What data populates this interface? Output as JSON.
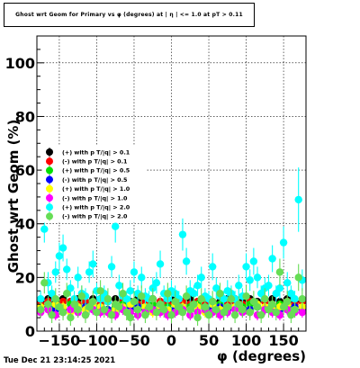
{
  "chart_data": {
    "type": "scatter",
    "title": "Ghost wrt Geom for Primary vs φ (degrees) at | η | <= 1.0 at pT > 0.11",
    "xlabel": "φ (degrees)",
    "ylabel": "Ghost wrt Geom (%)",
    "xlim": [
      -180,
      180
    ],
    "ylim": [
      0,
      110
    ],
    "x_ticks": [
      -150,
      -100,
      -50,
      0,
      50,
      100,
      150
    ],
    "y_ticks": [
      0,
      20,
      40,
      60,
      80,
      100
    ],
    "grid": true,
    "legend_position": "middle-left",
    "series": [
      {
        "name": "(+) with p T/|q| > 0.1",
        "color": "#000000",
        "x": [
          -175,
          -165,
          -155,
          -145,
          -135,
          -125,
          -115,
          -105,
          -95,
          -85,
          -75,
          -65,
          -55,
          -45,
          -35,
          -25,
          -15,
          -5,
          5,
          15,
          25,
          35,
          45,
          55,
          65,
          75,
          85,
          95,
          105,
          115,
          125,
          135,
          145,
          155,
          165,
          175
        ],
        "y": [
          11,
          12,
          11,
          12,
          11,
          12,
          11,
          12,
          12,
          11,
          12,
          11,
          11,
          12,
          11,
          12,
          11,
          11,
          12,
          11,
          12,
          11,
          12,
          11,
          11,
          12,
          12,
          11,
          12,
          11,
          11,
          12,
          11,
          12,
          11,
          11
        ],
        "errors": [
          1,
          1,
          1,
          1,
          1,
          1,
          1,
          1,
          1,
          1,
          1,
          1,
          1,
          1,
          1,
          1,
          1,
          1,
          1,
          1,
          1,
          1,
          1,
          1,
          1,
          1,
          1,
          1,
          1,
          1,
          1,
          1,
          1,
          1,
          1,
          1
        ]
      },
      {
        "name": "(-) with p T/|q| > 0.1",
        "color": "#ff0000",
        "x": [
          -175,
          -165,
          -155,
          -145,
          -135,
          -125,
          -115,
          -105,
          -95,
          -85,
          -75,
          -65,
          -55,
          -45,
          -35,
          -25,
          -15,
          -5,
          5,
          15,
          25,
          35,
          45,
          55,
          65,
          75,
          85,
          95,
          105,
          115,
          125,
          135,
          145,
          155,
          165,
          175
        ],
        "y": [
          10,
          11,
          10,
          11,
          11,
          10,
          11,
          10,
          10,
          11,
          10,
          11,
          10,
          10,
          11,
          10,
          11,
          10,
          10,
          11,
          10,
          11,
          10,
          11,
          10,
          10,
          11,
          10,
          11,
          10,
          11,
          10,
          10,
          11,
          10,
          11
        ],
        "errors": [
          1,
          1,
          1,
          1,
          1,
          1,
          1,
          1,
          1,
          1,
          1,
          1,
          1,
          1,
          1,
          1,
          1,
          1,
          1,
          1,
          1,
          1,
          1,
          1,
          1,
          1,
          1,
          1,
          1,
          1,
          1,
          1,
          1,
          1,
          1,
          1
        ]
      },
      {
        "name": "(+) with p T/|q| > 0.5",
        "color": "#00e000",
        "x": [
          -175,
          -165,
          -155,
          -145,
          -135,
          -125,
          -115,
          -105,
          -95,
          -85,
          -75,
          -65,
          -55,
          -45,
          -35,
          -25,
          -15,
          -5,
          5,
          15,
          25,
          35,
          45,
          55,
          65,
          75,
          85,
          95,
          105,
          115,
          125,
          135,
          145,
          155,
          165,
          175
        ],
        "y": [
          9,
          10,
          9,
          8,
          10,
          9,
          9,
          10,
          9,
          8,
          9,
          10,
          9,
          9,
          8,
          10,
          9,
          9,
          10,
          8,
          9,
          10,
          9,
          9,
          10,
          8,
          9,
          9,
          10,
          9,
          8,
          9,
          10,
          9,
          9,
          8
        ],
        "errors": [
          1.5,
          1.5,
          1.5,
          1.5,
          1.5,
          1.5,
          1.5,
          1.5,
          1.5,
          1.5,
          1.5,
          1.5,
          1.5,
          1.5,
          1.5,
          1.5,
          1.5,
          1.5,
          1.5,
          1.5,
          1.5,
          1.5,
          1.5,
          1.5,
          1.5,
          1.5,
          1.5,
          1.5,
          1.5,
          1.5,
          1.5,
          1.5,
          1.5,
          1.5,
          1.5,
          1.5
        ]
      },
      {
        "name": "(-) with p T/|q| > 0.5",
        "color": "#0000ff",
        "x": [
          -175,
          -165,
          -155,
          -145,
          -135,
          -125,
          -115,
          -105,
          -95,
          -85,
          -75,
          -65,
          -55,
          -45,
          -35,
          -25,
          -15,
          -5,
          5,
          15,
          25,
          35,
          45,
          55,
          65,
          75,
          85,
          95,
          105,
          115,
          125,
          135,
          145,
          155,
          165,
          175
        ],
        "y": [
          8,
          9,
          8,
          9,
          8,
          8,
          9,
          8,
          9,
          8,
          8,
          9,
          8,
          9,
          8,
          8,
          9,
          8,
          8,
          9,
          8,
          9,
          8,
          8,
          9,
          8,
          9,
          8,
          8,
          9,
          8,
          9,
          8,
          8,
          9,
          8
        ],
        "errors": [
          1.5,
          1.5,
          1.5,
          1.5,
          1.5,
          1.5,
          1.5,
          1.5,
          1.5,
          1.5,
          1.5,
          1.5,
          1.5,
          1.5,
          1.5,
          1.5,
          1.5,
          1.5,
          1.5,
          1.5,
          1.5,
          1.5,
          1.5,
          1.5,
          1.5,
          1.5,
          1.5,
          1.5,
          1.5,
          1.5,
          1.5,
          1.5,
          1.5,
          1.5,
          1.5,
          1.5
        ]
      },
      {
        "name": "(+) with p T/|q| > 1.0",
        "color": "#ffff00",
        "x": [
          -175,
          -165,
          -155,
          -145,
          -135,
          -125,
          -115,
          -105,
          -95,
          -85,
          -75,
          -65,
          -55,
          -45,
          -35,
          -25,
          -15,
          -5,
          5,
          15,
          25,
          35,
          45,
          55,
          65,
          75,
          85,
          95,
          105,
          115,
          125,
          135,
          145,
          155,
          165,
          175
        ],
        "y": [
          9,
          8,
          10,
          9,
          7,
          9,
          8,
          10,
          9,
          7,
          8,
          9,
          10,
          8,
          9,
          7,
          9,
          8,
          10,
          9,
          8,
          9,
          7,
          10,
          8,
          9,
          9,
          8,
          7,
          10,
          9,
          8,
          9,
          10,
          8,
          9
        ],
        "errors": [
          2,
          2,
          2,
          2,
          2,
          2,
          2,
          2,
          2,
          2,
          2,
          2,
          2,
          2,
          2,
          2,
          2,
          2,
          2,
          2,
          2,
          2,
          2,
          2,
          2,
          2,
          2,
          2,
          2,
          2,
          2,
          2,
          2,
          2,
          2,
          2
        ]
      },
      {
        "name": "(-) with p T/|q| > 1.0",
        "color": "#ff00ff",
        "x": [
          -175,
          -165,
          -155,
          -145,
          -135,
          -125,
          -115,
          -105,
          -95,
          -85,
          -75,
          -65,
          -55,
          -45,
          -35,
          -25,
          -15,
          -5,
          5,
          15,
          25,
          35,
          45,
          55,
          65,
          75,
          85,
          95,
          105,
          115,
          125,
          135,
          145,
          155,
          165,
          175
        ],
        "y": [
          7,
          8,
          6,
          7,
          8,
          7,
          6,
          8,
          7,
          7,
          6,
          8,
          7,
          6,
          7,
          8,
          7,
          6,
          7,
          8,
          6,
          7,
          8,
          7,
          6,
          7,
          8,
          7,
          7,
          6,
          8,
          7,
          6,
          8,
          7,
          7
        ],
        "errors": [
          2,
          2,
          2,
          2,
          2,
          2,
          2,
          2,
          2,
          2,
          2,
          2,
          2,
          2,
          2,
          2,
          2,
          2,
          2,
          2,
          2,
          2,
          2,
          2,
          2,
          2,
          2,
          2,
          2,
          2,
          2,
          2,
          2,
          2,
          2,
          2
        ]
      },
      {
        "name": "(+) with p T/|q| > 2.0",
        "color": "#00ffff",
        "x": [
          -175,
          -170,
          -165,
          -160,
          -155,
          -150,
          -145,
          -140,
          -135,
          -130,
          -125,
          -120,
          -115,
          -110,
          -105,
          -100,
          -95,
          -90,
          -85,
          -80,
          -75,
          -70,
          -65,
          -60,
          -55,
          -50,
          -45,
          -40,
          -35,
          -30,
          -25,
          -20,
          -15,
          -10,
          -5,
          0,
          5,
          10,
          15,
          20,
          25,
          30,
          35,
          40,
          45,
          50,
          55,
          60,
          65,
          70,
          75,
          80,
          85,
          90,
          95,
          100,
          105,
          110,
          115,
          120,
          125,
          130,
          135,
          140,
          145,
          150,
          155,
          160,
          165,
          170,
          175
        ],
        "y": [
          12,
          38,
          18,
          14,
          22,
          28,
          31,
          23,
          16,
          12,
          20,
          14,
          13,
          22,
          25,
          15,
          12,
          14,
          11,
          24,
          39,
          17,
          13,
          12,
          15,
          22,
          14,
          20,
          13,
          12,
          16,
          18,
          25,
          14,
          12,
          15,
          14,
          12,
          36,
          26,
          15,
          14,
          17,
          20,
          13,
          12,
          24,
          16,
          13,
          12,
          15,
          14,
          12,
          17,
          13,
          24,
          19,
          26,
          20,
          14,
          16,
          17,
          27,
          14,
          16,
          33,
          18,
          14,
          12,
          49,
          19
        ],
        "errors": [
          3,
          5,
          4,
          3,
          4,
          5,
          5,
          4,
          3,
          3,
          4,
          3,
          3,
          4,
          5,
          3,
          3,
          3,
          3,
          4,
          6,
          4,
          3,
          3,
          4,
          4,
          3,
          4,
          3,
          3,
          4,
          4,
          5,
          3,
          3,
          4,
          3,
          3,
          6,
          5,
          4,
          3,
          4,
          4,
          3,
          3,
          5,
          4,
          3,
          3,
          4,
          3,
          3,
          4,
          3,
          5,
          4,
          5,
          4,
          3,
          4,
          4,
          5,
          3,
          4,
          6,
          4,
          3,
          3,
          12,
          4
        ]
      },
      {
        "name": "(-) with p T/|q| > 2.0",
        "color": "#66dd55",
        "x": [
          -175,
          -170,
          -165,
          -160,
          -155,
          -150,
          -145,
          -140,
          -135,
          -130,
          -125,
          -120,
          -115,
          -110,
          -105,
          -100,
          -95,
          -90,
          -85,
          -80,
          -75,
          -70,
          -65,
          -60,
          -55,
          -50,
          -45,
          -40,
          -35,
          -30,
          -25,
          -20,
          -15,
          -10,
          -5,
          0,
          5,
          10,
          15,
          20,
          25,
          30,
          35,
          40,
          45,
          50,
          55,
          60,
          65,
          70,
          75,
          80,
          85,
          90,
          95,
          100,
          105,
          110,
          115,
          120,
          125,
          130,
          135,
          140,
          145,
          150,
          155,
          160,
          165,
          170,
          175
        ],
        "y": [
          8,
          18,
          10,
          6,
          12,
          9,
          7,
          14,
          5,
          10,
          8,
          13,
          6,
          9,
          11,
          7,
          15,
          8,
          12,
          6,
          10,
          9,
          14,
          7,
          5,
          11,
          8,
          13,
          6,
          9,
          12,
          7,
          10,
          8,
          14,
          6,
          11,
          9,
          7,
          13,
          8,
          10,
          5,
          12,
          9,
          6,
          11,
          8,
          14,
          7,
          9,
          12,
          6,
          10,
          8,
          13,
          7,
          11,
          9,
          6,
          12,
          8,
          10,
          7,
          22,
          9,
          11,
          6,
          8,
          20,
          12
        ],
        "errors": [
          3,
          4,
          3,
          3,
          4,
          3,
          3,
          4,
          3,
          3,
          3,
          4,
          3,
          3,
          4,
          3,
          4,
          3,
          4,
          3,
          3,
          3,
          4,
          3,
          3,
          4,
          3,
          4,
          3,
          3,
          4,
          3,
          3,
          3,
          4,
          3,
          4,
          3,
          3,
          4,
          3,
          3,
          3,
          4,
          3,
          3,
          4,
          3,
          4,
          3,
          3,
          4,
          3,
          3,
          3,
          4,
          3,
          4,
          3,
          3,
          4,
          3,
          3,
          3,
          5,
          3,
          4,
          3,
          3,
          5,
          4
        ]
      }
    ]
  },
  "footer": {
    "timestamp": "Tue Dec 21 23:14:25 2021"
  }
}
